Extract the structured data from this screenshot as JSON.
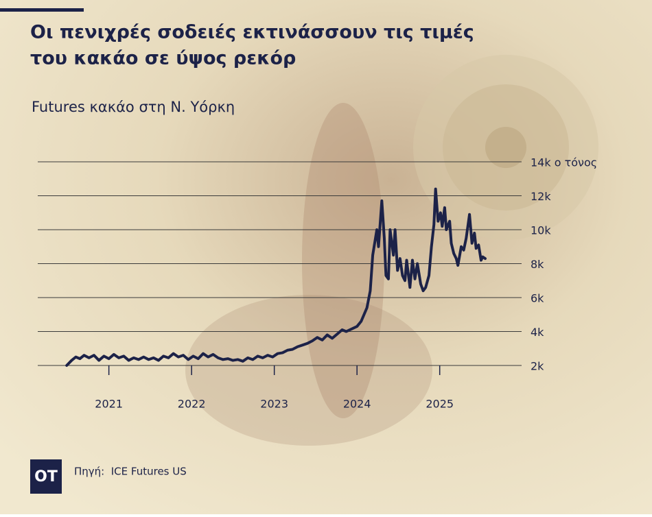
{
  "chart_data": {
    "type": "line",
    "title": "Οι πενιχρές σοδειές εκτινάσσουν τις τιμές",
    "title_line2": "του κακάο σε ύψος ρεκόρ",
    "subtitle": "Futures κακάο στη Ν. Υόρκη",
    "source": "Πηγή:  ICE Futures US",
    "logo": "OT",
    "color": "#1c2248",
    "grid": true,
    "xlim": [
      2020.14,
      2025.99
    ],
    "xticks": [
      2021,
      2022,
      2023,
      2024,
      2025
    ],
    "ylim": [
      2000,
      14000
    ],
    "yticks": [
      {
        "value": 2000,
        "label": "2k"
      },
      {
        "value": 4000,
        "label": "4k"
      },
      {
        "value": 6000,
        "label": "6k"
      },
      {
        "value": 8000,
        "label": "8k"
      },
      {
        "value": 10000,
        "label": "10k"
      },
      {
        "value": 12000,
        "label": "12k"
      },
      {
        "value": 14000,
        "label": "14k ο τόνος"
      }
    ],
    "x": [
      2020.49,
      2020.55,
      2020.6,
      2020.65,
      2020.7,
      2020.76,
      2020.82,
      2020.88,
      2020.94,
      2021.0,
      2021.06,
      2021.12,
      2021.18,
      2021.24,
      2021.3,
      2021.36,
      2021.42,
      2021.48,
      2021.54,
      2021.6,
      2021.66,
      2021.72,
      2021.78,
      2021.84,
      2021.9,
      2021.96,
      2022.02,
      2022.08,
      2022.14,
      2022.2,
      2022.26,
      2022.32,
      2022.38,
      2022.44,
      2022.5,
      2022.56,
      2022.62,
      2022.68,
      2022.74,
      2022.8,
      2022.86,
      2022.92,
      2022.98,
      2023.04,
      2023.1,
      2023.16,
      2023.22,
      2023.28,
      2023.34,
      2023.4,
      2023.46,
      2023.52,
      2023.58,
      2023.64,
      2023.7,
      2023.76,
      2023.82,
      2023.87,
      2024.0,
      2024.05,
      2024.12,
      2024.16,
      2024.19,
      2024.24,
      2024.26,
      2024.3,
      2024.33,
      2024.35,
      2024.38,
      2024.4,
      2024.44,
      2024.46,
      2024.49,
      2024.52,
      2024.55,
      2024.58,
      2024.6,
      2024.64,
      2024.67,
      2024.7,
      2024.73,
      2024.77,
      2024.8,
      2024.83,
      2024.87,
      2024.9,
      2024.93,
      2024.95,
      2024.98,
      2025.01,
      2025.03,
      2025.06,
      2025.08,
      2025.12,
      2025.14,
      2025.17,
      2025.2,
      2025.22,
      2025.26,
      2025.29,
      2025.32,
      2025.36,
      2025.39,
      2025.42,
      2025.44,
      2025.47,
      2025.5,
      2025.52,
      2025.55
    ],
    "values": [
      2000,
      2300,
      2500,
      2400,
      2600,
      2450,
      2600,
      2300,
      2550,
      2400,
      2650,
      2450,
      2550,
      2300,
      2450,
      2350,
      2500,
      2350,
      2450,
      2300,
      2550,
      2450,
      2700,
      2500,
      2600,
      2350,
      2550,
      2400,
      2700,
      2500,
      2650,
      2450,
      2350,
      2400,
      2300,
      2350,
      2250,
      2450,
      2350,
      2550,
      2450,
      2600,
      2500,
      2700,
      2750,
      2900,
      2950,
      3100,
      3200,
      3300,
      3450,
      3650,
      3500,
      3800,
      3600,
      3850,
      4100,
      4000,
      4300,
      4600,
      5400,
      6400,
      8500,
      10000,
      9000,
      11700,
      9500,
      7300,
      7100,
      10000,
      8500,
      10000,
      7600,
      8300,
      7300,
      7000,
      8200,
      6600,
      8200,
      7100,
      8000,
      6800,
      6400,
      6600,
      7300,
      9000,
      10300,
      12400,
      10500,
      11000,
      10200,
      11300,
      10000,
      10500,
      9200,
      8600,
      8300,
      7900,
      9000,
      8800,
      9500,
      10900,
      9200,
      9800,
      8900,
      9100,
      8200,
      8400,
      8300
    ]
  }
}
